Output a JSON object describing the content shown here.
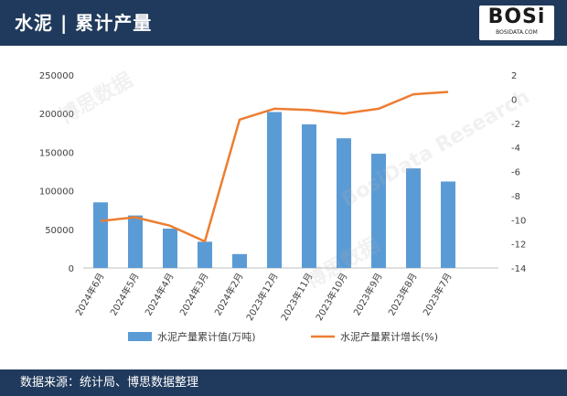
{
  "header": {
    "title": "水泥 | 累计产量",
    "logo_text": "BOSi",
    "logo_sub": "BOSIDATA.COM"
  },
  "footer": {
    "source": "数据来源：统计局、博思数据整理"
  },
  "watermark": {
    "text": "博思数据",
    "sub": "BosiData Research"
  },
  "colors": {
    "header_bg": "#1f3a5c",
    "bar": "#5b9bd5",
    "line": "#ed7d31"
  },
  "chart_data": {
    "type": "bar+line",
    "categories": [
      "2024年6月",
      "2024年5月",
      "2024年4月",
      "2024年3月",
      "2024年2月",
      "2023年12月",
      "2023年11月",
      "2023年10月",
      "2023年9月",
      "2023年8月",
      "2023年7月"
    ],
    "series": [
      {
        "name": "水泥产量累计值(万吨)",
        "type": "bar",
        "axis": "left",
        "values": [
          85000,
          68000,
          51000,
          34000,
          18000,
          202000,
          186000,
          168000,
          148000,
          129000,
          112000
        ]
      },
      {
        "name": "水泥产量累计增长(%)",
        "type": "line",
        "axis": "right",
        "values": [
          -10.1,
          -9.8,
          -10.5,
          -11.8,
          -1.7,
          -0.8,
          -0.9,
          -1.2,
          -0.8,
          0.4,
          0.6
        ]
      }
    ],
    "y_left": {
      "min": 0,
      "max": 250000,
      "ticks": [
        "0",
        "50000",
        "100000",
        "150000",
        "200000",
        "250000"
      ]
    },
    "y_right": {
      "min": -14,
      "max": 2,
      "ticks": [
        "2",
        "0",
        "-2",
        "-4",
        "-6",
        "-8",
        "-10",
        "-12",
        "-14"
      ]
    },
    "legend_position": "bottom",
    "grid": false
  }
}
